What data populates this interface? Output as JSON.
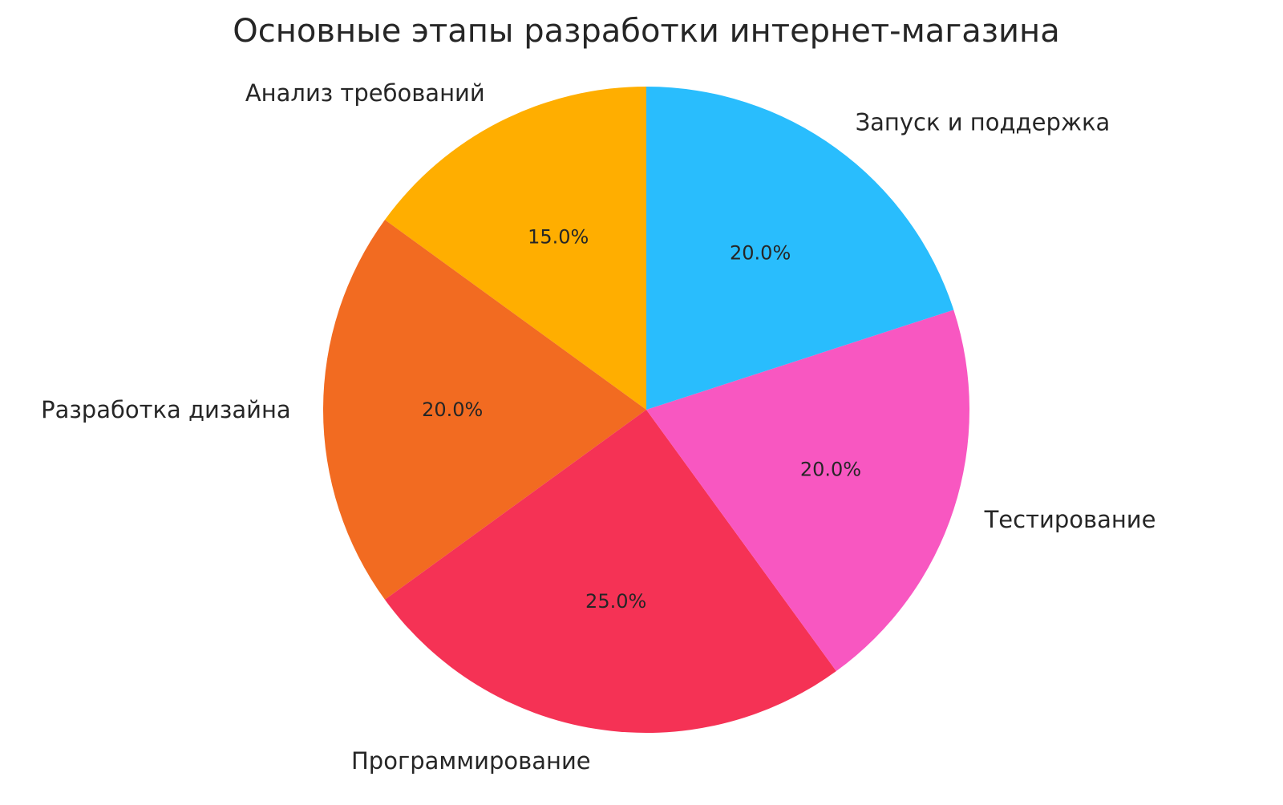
{
  "chart_data": {
    "type": "pie",
    "title": "Основные этапы разработки интернет-магазина",
    "start_angle_deg": 90,
    "direction": "counterclockwise",
    "slices": [
      {
        "label": "Анализ требований",
        "value": 15,
        "pct_label": "15.0%",
        "color": "#FFAE00"
      },
      {
        "label": "Разработка дизайна",
        "value": 20,
        "pct_label": "20.0%",
        "color": "#F26B21"
      },
      {
        "label": "Программирование",
        "value": 25,
        "pct_label": "25.0%",
        "color": "#F53255"
      },
      {
        "label": "Тестирование",
        "value": 20,
        "pct_label": "20.0%",
        "color": "#F857C1"
      },
      {
        "label": "Запуск и поддержка",
        "value": 20,
        "pct_label": "20.0%",
        "color": "#29BDFD"
      }
    ]
  }
}
